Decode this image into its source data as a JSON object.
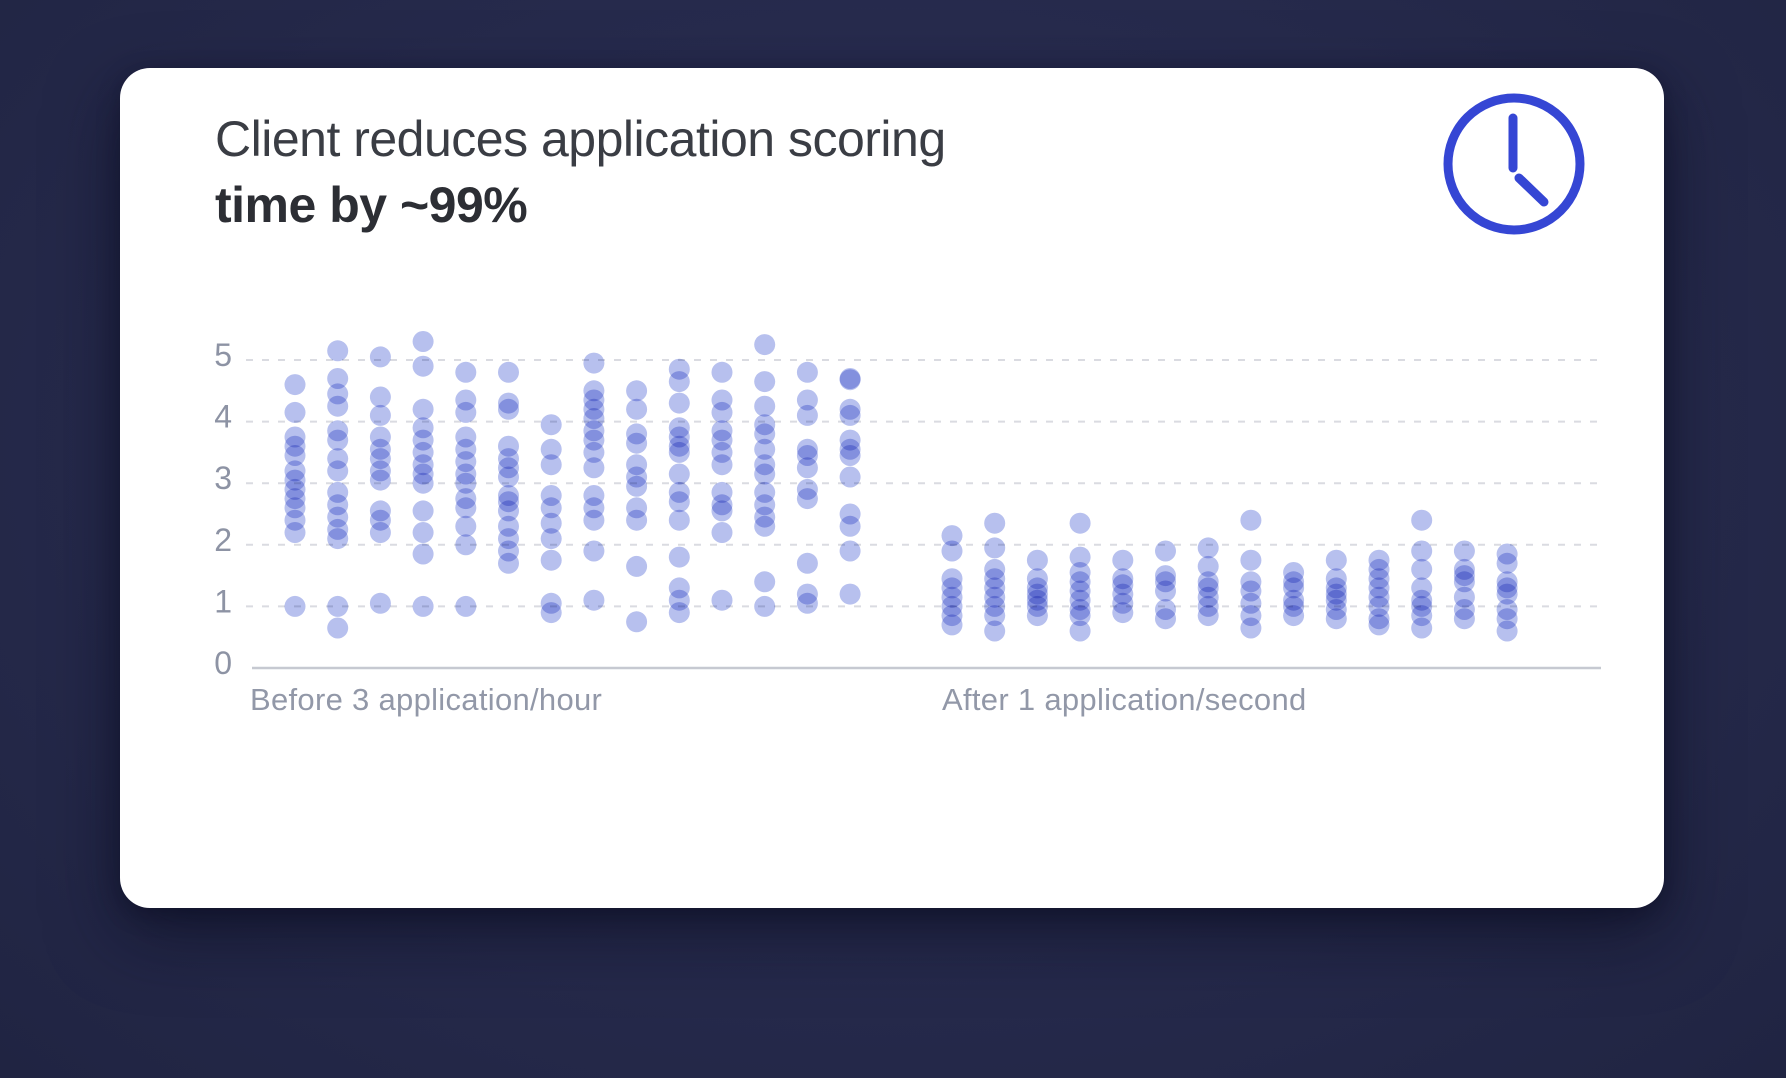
{
  "colors": {
    "page_background": "#262a4c",
    "card_background": "#ffffff",
    "title_text": "#33363c",
    "axis_text": "#8d93a4",
    "gridline": "#dadbe1",
    "axis_line": "#c6c9d1",
    "dot_fill": "#b7c0ee",
    "clock_stroke": "#3546d4"
  },
  "card": {
    "title_line1": "Client reduces application scoring",
    "title_line2": "time by ~99%"
  },
  "icons": {
    "clock": "clock-icon"
  },
  "chart_data": {
    "type": "scatter",
    "subtype": "jittered-strip-plot",
    "grid": "horizontal-dashed",
    "legend": "none",
    "yticks": [
      0,
      1,
      2,
      3,
      4,
      5
    ],
    "ylim": [
      0,
      5.5
    ],
    "xlabel": "",
    "ylabel": "",
    "categories": [
      "Before 3 application/hour",
      "After 1 application/second"
    ],
    "groups": [
      {
        "label": "Before 3 application/hour",
        "columns": [
          [
            4.6,
            4.15,
            3.75,
            3.6,
            3.45,
            3.2,
            3.05,
            2.9,
            2.75,
            2.6,
            2.4,
            2.2,
            1.0
          ],
          [
            5.15,
            4.7,
            4.45,
            4.25,
            3.85,
            3.7,
            3.4,
            3.2,
            2.85,
            2.65,
            2.45,
            2.25,
            2.1,
            1.0,
            0.65
          ],
          [
            5.05,
            4.4,
            4.1,
            3.75,
            3.55,
            3.4,
            3.2,
            3.05,
            2.55,
            2.4,
            2.2,
            1.05
          ],
          [
            5.3,
            4.9,
            4.2,
            3.9,
            3.7,
            3.5,
            3.3,
            3.15,
            3.0,
            2.55,
            2.2,
            1.85,
            1.0
          ],
          [
            4.8,
            4.35,
            4.15,
            3.75,
            3.55,
            3.35,
            3.15,
            3.0,
            2.75,
            2.6,
            2.3,
            2.0,
            1.0
          ],
          [
            4.8,
            4.3,
            4.2,
            3.6,
            3.4,
            3.25,
            3.1,
            2.8,
            2.7,
            2.55,
            2.3,
            2.1,
            1.9,
            1.7
          ],
          [
            3.95,
            3.55,
            3.3,
            2.8,
            2.6,
            2.35,
            2.1,
            1.75,
            1.05,
            0.9
          ],
          [
            4.95,
            4.5,
            4.35,
            4.2,
            4.05,
            3.85,
            3.7,
            3.5,
            3.25,
            2.8,
            2.6,
            2.4,
            1.9,
            1.1
          ],
          [
            4.5,
            4.2,
            3.8,
            3.65,
            3.3,
            3.1,
            2.95,
            2.6,
            2.4,
            1.65,
            0.75
          ],
          [
            4.85,
            4.65,
            4.3,
            3.9,
            3.75,
            3.6,
            3.5,
            3.15,
            2.85,
            2.7,
            2.4,
            1.8,
            1.3,
            1.1,
            0.9
          ],
          [
            4.8,
            4.35,
            4.15,
            3.85,
            3.7,
            3.5,
            3.3,
            2.85,
            2.65,
            2.55,
            2.2,
            1.1
          ],
          [
            5.25,
            4.65,
            4.25,
            3.95,
            3.8,
            3.55,
            3.3,
            3.15,
            2.85,
            2.65,
            2.45,
            2.3,
            1.4,
            1.0
          ],
          [
            4.8,
            4.35,
            4.1,
            3.55,
            3.45,
            3.25,
            2.9,
            2.75,
            1.7,
            1.2,
            1.05
          ],
          [
            4.7,
            4.68,
            4.2,
            4.1,
            3.7,
            3.55,
            3.45,
            3.1,
            2.5,
            2.3,
            1.9,
            1.2
          ]
        ]
      },
      {
        "label": "After 1 application/second",
        "columns": [
          [
            2.15,
            1.9,
            1.45,
            1.3,
            1.15,
            1.0,
            0.85,
            0.7
          ],
          [
            2.35,
            1.95,
            1.6,
            1.45,
            1.3,
            1.15,
            1.0,
            0.85,
            0.6
          ],
          [
            1.75,
            1.45,
            1.3,
            1.2,
            1.1,
            1.0,
            0.85
          ],
          [
            2.35,
            1.8,
            1.55,
            1.4,
            1.25,
            1.1,
            0.95,
            0.85,
            0.6
          ],
          [
            1.75,
            1.45,
            1.35,
            1.2,
            1.05,
            0.9
          ],
          [
            1.9,
            1.5,
            1.4,
            1.25,
            0.95,
            0.8
          ],
          [
            1.95,
            1.65,
            1.4,
            1.3,
            1.15,
            1.0,
            0.85
          ],
          [
            2.4,
            1.75,
            1.4,
            1.25,
            1.05,
            0.85,
            0.65
          ],
          [
            1.55,
            1.4,
            1.3,
            1.1,
            1.0,
            0.85
          ],
          [
            1.75,
            1.45,
            1.3,
            1.2,
            1.1,
            0.95,
            0.8
          ],
          [
            1.75,
            1.6,
            1.45,
            1.3,
            1.15,
            1.0,
            0.8,
            0.7
          ],
          [
            2.4,
            1.9,
            1.6,
            1.3,
            1.1,
            1.0,
            0.85,
            0.65
          ],
          [
            1.9,
            1.6,
            1.5,
            1.4,
            1.15,
            0.95,
            0.8
          ],
          [
            1.85,
            1.7,
            1.4,
            1.3,
            1.2,
            0.95,
            0.8,
            0.6
          ]
        ]
      }
    ]
  }
}
